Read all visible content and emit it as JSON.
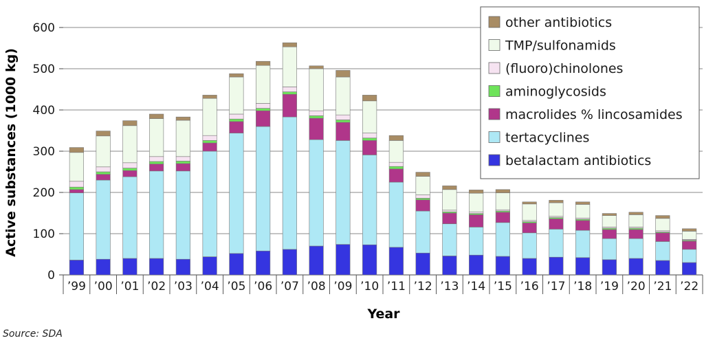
{
  "chart_data": {
    "type": "bar",
    "stacked": true,
    "xlabel": "Year",
    "ylabel": "Active substances (1000 kg)",
    "ylim": [
      0,
      600
    ],
    "yticks": [
      0,
      100,
      200,
      300,
      400,
      500,
      600
    ],
    "grid": "horizontal",
    "legend_position": "top-right",
    "categories": [
      "’99",
      "’00",
      "’01",
      "’02",
      "’03",
      "’04",
      "’05",
      "’06",
      "’07",
      "’08",
      "’09",
      "’10",
      "’11",
      "’12",
      "’13",
      "’14",
      "’15",
      "’16",
      "’17",
      "’18",
      "’19",
      "’20",
      "’21",
      "’22"
    ],
    "series": [
      {
        "name": "betalactam antibiotics",
        "color": "#3535e0",
        "values": [
          36,
          38,
          40,
          40,
          38,
          44,
          52,
          58,
          62,
          70,
          74,
          73,
          67,
          53,
          46,
          48,
          45,
          40,
          43,
          42,
          37,
          40,
          35,
          30
        ]
      },
      {
        "name": "tertacyclines",
        "color": "#aee8f5",
        "values": [
          163,
          192,
          198,
          212,
          214,
          256,
          292,
          302,
          321,
          258,
          252,
          218,
          158,
          102,
          78,
          68,
          82,
          62,
          68,
          66,
          51,
          48,
          46,
          32
        ]
      },
      {
        "name": "macrolides % lincosamides",
        "color": "#b0368a",
        "values": [
          8,
          14,
          15,
          17,
          18,
          20,
          28,
          38,
          55,
          52,
          44,
          35,
          32,
          27,
          26,
          30,
          25,
          24,
          25,
          24,
          22,
          22,
          21,
          20
        ]
      },
      {
        "name": "aminoglycosids",
        "color": "#6ee35a",
        "values": [
          6,
          6,
          6,
          6,
          6,
          6,
          6,
          6,
          6,
          6,
          6,
          6,
          6,
          4,
          3,
          3,
          3,
          3,
          3,
          3,
          3,
          3,
          2,
          2
        ]
      },
      {
        "name": "(fluoro)chinolones",
        "color": "#f6e3f1",
        "values": [
          14,
          12,
          13,
          12,
          11,
          12,
          12,
          12,
          12,
          12,
          12,
          12,
          10,
          8,
          4,
          4,
          3,
          3,
          3,
          3,
          3,
          3,
          3,
          2
        ]
      },
      {
        "name": "TMP/sulfonamids",
        "color": "#effaea",
        "values": [
          70,
          75,
          90,
          92,
          88,
          90,
          90,
          92,
          97,
          102,
          92,
          78,
          53,
          45,
          50,
          45,
          41,
          40,
          33,
          33,
          28,
          30,
          30,
          20
        ]
      },
      {
        "name": "other antibiotics",
        "color": "#a88c64",
        "values": [
          12,
          12,
          12,
          11,
          8,
          8,
          8,
          10,
          10,
          7,
          16,
          14,
          12,
          10,
          9,
          8,
          8,
          5,
          6,
          6,
          5,
          6,
          7,
          6
        ]
      }
    ]
  },
  "source_note": "Source: SDA"
}
